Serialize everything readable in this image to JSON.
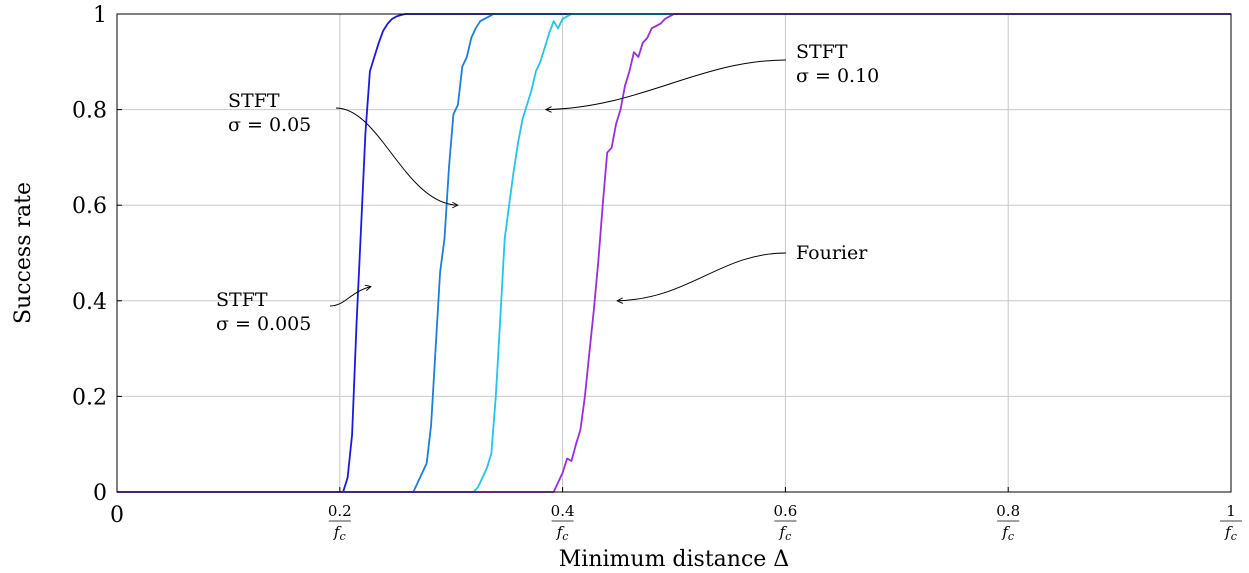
{
  "chart_data": {
    "type": "line",
    "xlabel": "Minimum distance Δ",
    "ylabel": "Success rate",
    "xlim": [
      0,
      1
    ],
    "ylim": [
      0,
      1
    ],
    "grid": true,
    "x_ticks": [
      {
        "value": 0,
        "label": "0"
      },
      {
        "value": 0.2,
        "num": "0.2",
        "den": "f_c"
      },
      {
        "value": 0.4,
        "num": "0.4",
        "den": "f_c"
      },
      {
        "value": 0.6,
        "num": "0.6",
        "den": "f_c"
      },
      {
        "value": 0.8,
        "num": "0.8",
        "den": "f_c"
      },
      {
        "value": 1.0,
        "num": "1",
        "den": "f_c"
      }
    ],
    "y_ticks": [
      {
        "value": 0,
        "label": "0"
      },
      {
        "value": 0.2,
        "label": "0.2"
      },
      {
        "value": 0.4,
        "label": "0.4"
      },
      {
        "value": 0.6,
        "label": "0.6"
      },
      {
        "value": 0.8,
        "label": "0.8"
      },
      {
        "value": 1,
        "label": "1"
      }
    ],
    "series": [
      {
        "name": "STFT σ = 0.005",
        "color": "#1a1adb",
        "x": [
          0,
          0.203,
          0.207,
          0.211,
          0.215,
          0.219,
          0.223,
          0.227,
          0.231,
          0.235,
          0.239,
          0.243,
          0.247,
          0.251,
          0.255,
          0.259,
          0.263,
          0.267,
          0.271,
          0.275,
          0.279,
          1.0
        ],
        "y": [
          0,
          0,
          0.03,
          0.12,
          0.35,
          0.55,
          0.75,
          0.88,
          0.91,
          0.94,
          0.965,
          0.98,
          0.99,
          0.995,
          0.998,
          1,
          1,
          1,
          1,
          1,
          1,
          1
        ]
      },
      {
        "name": "STFT σ = 0.05",
        "color": "#1e7ddb",
        "x": [
          0,
          0.266,
          0.27,
          0.274,
          0.278,
          0.282,
          0.286,
          0.29,
          0.294,
          0.298,
          0.302,
          0.306,
          0.31,
          0.314,
          0.318,
          0.322,
          0.326,
          0.33,
          0.334,
          0.338,
          0.342,
          0.346,
          0.35,
          0.354,
          0.358,
          0.362,
          0.366,
          0.37,
          0.374,
          1.0
        ],
        "y": [
          0,
          0,
          0.02,
          0.04,
          0.06,
          0.14,
          0.3,
          0.46,
          0.53,
          0.68,
          0.79,
          0.81,
          0.89,
          0.91,
          0.95,
          0.97,
          0.985,
          0.99,
          0.995,
          1,
          1,
          1,
          1,
          1,
          1,
          1,
          1,
          1,
          1,
          1
        ]
      },
      {
        "name": "STFT σ = 0.10",
        "color": "#22c4e8",
        "x": [
          0,
          0.32,
          0.324,
          0.328,
          0.332,
          0.336,
          0.34,
          0.344,
          0.348,
          0.352,
          0.356,
          0.36,
          0.364,
          0.368,
          0.372,
          0.376,
          0.38,
          0.384,
          0.388,
          0.392,
          0.396,
          0.4,
          0.404,
          0.408,
          0.412,
          0.416,
          0.42,
          0.424,
          0.428,
          0.432,
          1.0
        ],
        "y": [
          0,
          0,
          0.01,
          0.03,
          0.05,
          0.08,
          0.2,
          0.36,
          0.53,
          0.6,
          0.67,
          0.73,
          0.78,
          0.81,
          0.84,
          0.88,
          0.9,
          0.93,
          0.96,
          0.985,
          0.97,
          0.99,
          0.995,
          1,
          1,
          1,
          1,
          1,
          1,
          1,
          1
        ]
      },
      {
        "name": "Fourier",
        "color": "#9a2ce0",
        "x": [
          0,
          0.392,
          0.396,
          0.4,
          0.404,
          0.408,
          0.412,
          0.416,
          0.42,
          0.424,
          0.428,
          0.432,
          0.436,
          0.44,
          0.444,
          0.448,
          0.452,
          0.456,
          0.46,
          0.464,
          0.468,
          0.472,
          0.476,
          0.48,
          0.484,
          0.488,
          0.492,
          0.496,
          0.5,
          0.504,
          0.508,
          0.512,
          0.516,
          0.52,
          0.524,
          0.528,
          0.532,
          0.536,
          1.0
        ],
        "y": [
          0,
          0,
          0.02,
          0.04,
          0.07,
          0.065,
          0.1,
          0.13,
          0.2,
          0.29,
          0.38,
          0.48,
          0.6,
          0.71,
          0.72,
          0.77,
          0.8,
          0.85,
          0.88,
          0.92,
          0.91,
          0.94,
          0.95,
          0.97,
          0.975,
          0.98,
          0.99,
          0.995,
          1,
          1,
          1,
          1,
          1,
          1,
          1,
          1,
          1,
          1,
          1
        ]
      }
    ],
    "annotations": [
      {
        "lines": [
          "STFT",
          "σ = 0.005"
        ],
        "target": [
          0.228,
          0.43
        ],
        "anchor": "left"
      },
      {
        "lines": [
          "STFT",
          "σ = 0.05"
        ],
        "target": [
          0.306,
          0.6
        ],
        "anchor": "left"
      },
      {
        "lines": [
          "STFT",
          "σ = 0.10"
        ],
        "target": [
          0.385,
          0.8
        ],
        "anchor": "right"
      },
      {
        "lines": [
          "Fourier"
        ],
        "target": [
          0.449,
          0.4
        ],
        "anchor": "right"
      }
    ]
  }
}
